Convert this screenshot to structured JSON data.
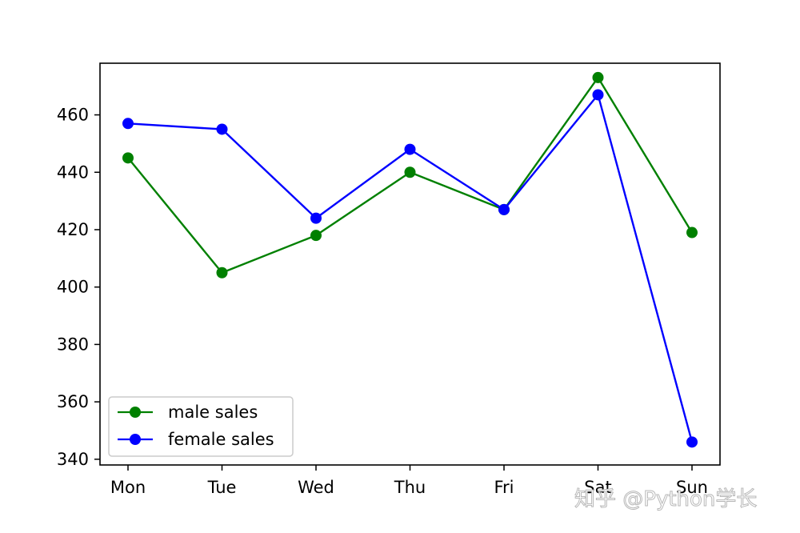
{
  "chart_data": {
    "type": "line",
    "categories": [
      "Mon",
      "Tue",
      "Wed",
      "Thu",
      "Fri",
      "Sat",
      "Sun"
    ],
    "series": [
      {
        "name": "male sales",
        "color": "#008000",
        "marker": "circle",
        "values": [
          445,
          405,
          418,
          440,
          427,
          473,
          419
        ]
      },
      {
        "name": "female sales",
        "color": "#0000ff",
        "marker": "circle",
        "values": [
          457,
          455,
          424,
          448,
          427,
          467,
          346
        ]
      }
    ],
    "y_ticks": [
      340,
      360,
      380,
      400,
      420,
      440,
      460
    ],
    "ylim": [
      338,
      478
    ],
    "grid": false,
    "legend_position": "lower-left"
  },
  "watermark": {
    "text": "知乎 @Python学长"
  }
}
